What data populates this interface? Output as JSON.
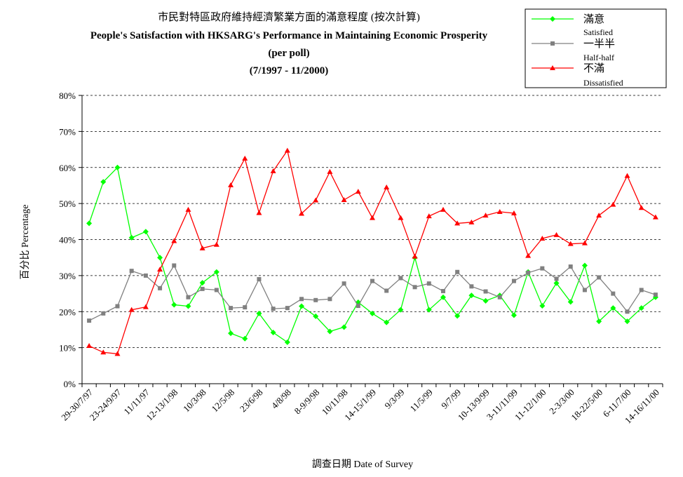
{
  "chart_data": {
    "type": "line",
    "title_lines": [
      "市民對特區政府維持經濟繁業方面的滿意程度 (按次計算)",
      "People's Satisfaction with HKSARG's Performance in Maintaining Economic Prosperity",
      "(per poll)",
      "(7/1997 - 11/2000)"
    ],
    "xlabel": "調查日期 Date of Survey",
    "ylabel": "百分比 Percentage",
    "ylim": [
      0,
      80
    ],
    "yticks": [
      0,
      10,
      20,
      30,
      40,
      50,
      60,
      70,
      80
    ],
    "ytick_labels": [
      "0%",
      "10%",
      "20%",
      "30%",
      "40%",
      "50%",
      "60%",
      "70%",
      "80%"
    ],
    "grid": "horizontal dashed",
    "legend_position": "top-right",
    "x_tick_labels": [
      "29-30/7/97",
      "23-24/9/97",
      "11/11/97",
      "12-13/1/98",
      "10/3/98",
      "12/5/98",
      "23/6/98",
      "4/8/98",
      "8-9/9/98",
      "10/11/98",
      "14-15/1/99",
      "9/3/99",
      "11/5/99",
      "9/7/99",
      "10-13/9/99",
      "3-11/11/99",
      "11-12/1/00",
      "2-3/3/00",
      "18-22/5/00",
      "6-11/7/00",
      "14-16/11/00"
    ],
    "series": [
      {
        "name": "滿意",
        "name_en": "Satisfied",
        "color": "#00ff00",
        "marker": "diamond",
        "values": [
          44.5,
          56.0,
          60.0,
          40.5,
          42.2,
          35.0,
          21.9,
          21.5,
          28.0,
          31.0,
          14.0,
          12.5,
          19.5,
          14.2,
          11.5,
          21.5,
          18.7,
          14.5,
          15.7,
          22.6,
          19.5,
          17.0,
          20.5,
          35.0,
          20.5,
          24.0,
          18.8,
          24.5,
          23.0,
          24.5,
          19.0,
          31.0,
          21.6,
          27.9,
          22.7,
          32.8,
          17.3,
          21.0,
          17.3,
          21.0,
          24.0
        ]
      },
      {
        "name": "一半半",
        "name_en": "Half-half",
        "color": "#808080",
        "marker": "square",
        "values": [
          17.5,
          19.5,
          21.5,
          31.3,
          30.0,
          26.5,
          32.8,
          24.0,
          26.3,
          26.0,
          21.0,
          21.2,
          29.0,
          20.8,
          21.0,
          23.5,
          23.2,
          23.5,
          27.8,
          21.6,
          28.5,
          25.8,
          29.3,
          26.8,
          27.8,
          25.7,
          31.0,
          27.0,
          25.6,
          24.0,
          28.5,
          30.8,
          32.0,
          29.1,
          32.5,
          26.0,
          29.5,
          25.0,
          20.0,
          26.0,
          24.7
        ]
      },
      {
        "name": "不滿",
        "name_en": "Dissatisfied",
        "color": "#ff0000",
        "marker": "triangle",
        "values": [
          10.5,
          8.7,
          8.3,
          20.5,
          21.3,
          31.7,
          39.6,
          48.3,
          37.6,
          38.6,
          55.1,
          62.5,
          47.4,
          59.0,
          64.7,
          47.2,
          50.9,
          58.8,
          51.0,
          53.3,
          46.0,
          54.5,
          46.0,
          35.3,
          46.5,
          48.3,
          44.5,
          44.8,
          46.7,
          47.7,
          47.3,
          35.5,
          40.3,
          41.3,
          38.8,
          39.0,
          46.7,
          49.7,
          57.7,
          48.8,
          46.2
        ]
      }
    ]
  }
}
